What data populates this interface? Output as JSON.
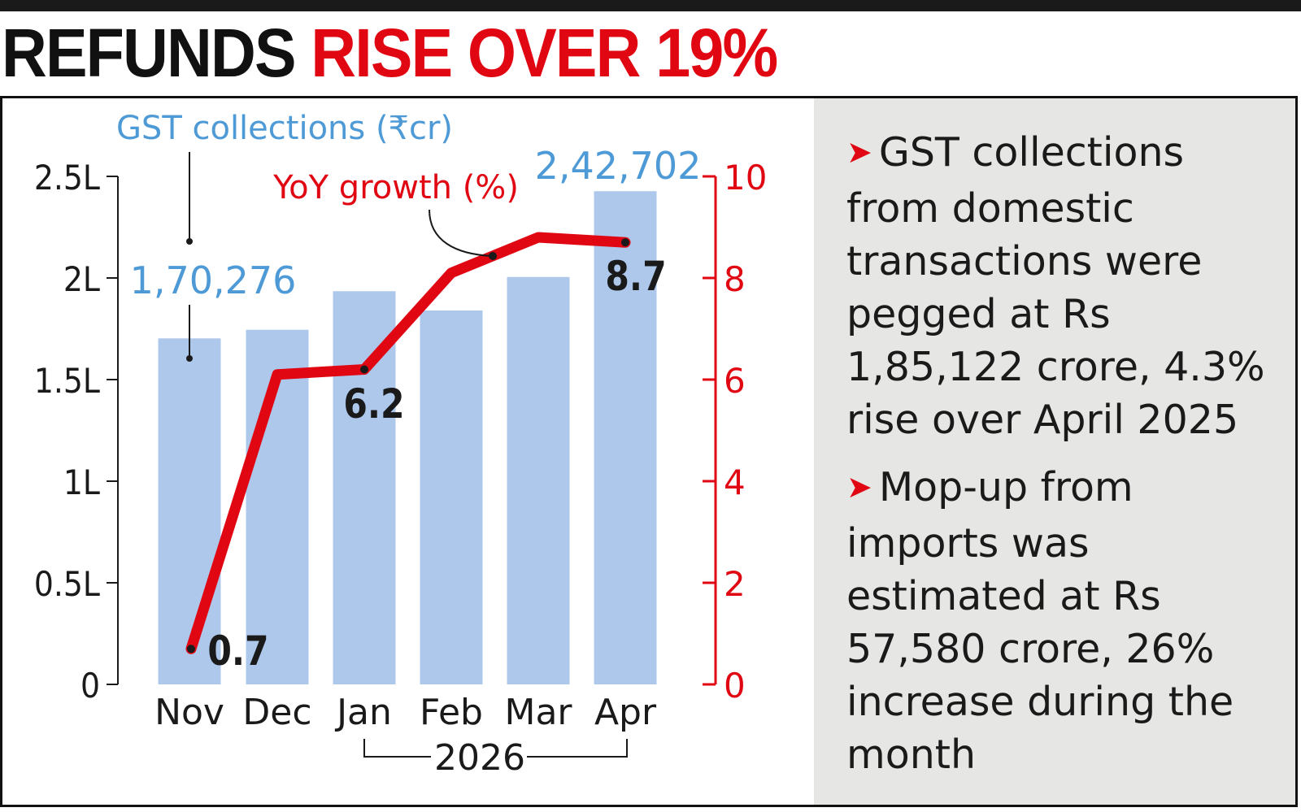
{
  "headline": {
    "part1": "REFUNDS",
    "part2": "RISE OVER 19%"
  },
  "colors": {
    "bar": "#aec8ec",
    "line": "#e00713",
    "label_blue": "#4d9ad6",
    "axis_red": "#e00713",
    "text": "#1a1a1a",
    "panel_bg": "#e6e6e4"
  },
  "chart_data": {
    "type": "bar+line",
    "categories": [
      "Nov",
      "Dec",
      "Jan",
      "Feb",
      "Mar",
      "Apr"
    ],
    "year_label": "2026",
    "series": [
      {
        "name": "GST collections (₹cr)",
        "type": "bar",
        "axis": "left",
        "values": [
          170276,
          174500,
          193500,
          184000,
          200500,
          242702
        ]
      },
      {
        "name": "YoY growth (%)",
        "type": "line",
        "axis": "right",
        "values": [
          0.7,
          6.1,
          6.2,
          8.1,
          8.8,
          8.7
        ]
      }
    ],
    "left_axis": {
      "range": [
        0,
        250000
      ],
      "ticks": [
        0,
        50000,
        100000,
        150000,
        200000,
        250000
      ],
      "tick_labels": [
        "0",
        "0.5L",
        "1L",
        "1.5L",
        "2L",
        "2.5L"
      ]
    },
    "right_axis": {
      "range": [
        0,
        10
      ],
      "ticks": [
        0,
        2,
        4,
        6,
        8,
        10
      ],
      "tick_labels": [
        "0",
        "2",
        "4",
        "6",
        "8",
        "10"
      ]
    },
    "bar_labels": [
      {
        "index": 0,
        "text": "1,70,276"
      },
      {
        "index": 5,
        "text": "2,42,702"
      }
    ],
    "line_labels": [
      {
        "index": 0,
        "text": "0.7"
      },
      {
        "index": 2,
        "text": "6.2"
      },
      {
        "index": 5,
        "text": "8.7"
      }
    ]
  },
  "notes": [
    {
      "icon": "red-arrow-icon",
      "text": "GST collections from domestic transactions were pegged at  Rs 1,85,122 crore, 4.3% rise over April 2025"
    },
    {
      "icon": "red-arrow-icon",
      "text": "Mop-up from imports was estimated at Rs 57,580 crore, 26% increase during the month"
    }
  ]
}
